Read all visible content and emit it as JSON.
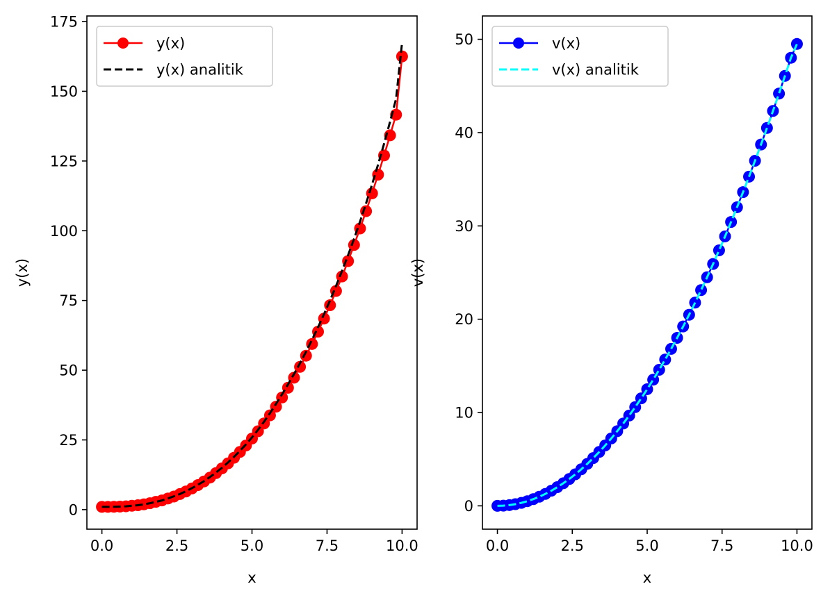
{
  "chart_data": [
    {
      "type": "line",
      "title": "",
      "xlabel": "x",
      "ylabel": "y(x)",
      "xlim": [
        -0.5,
        10.5
      ],
      "ylim": [
        -7,
        177
      ],
      "xticks": [
        "0.0",
        "2.5",
        "5.0",
        "7.5",
        "10.0"
      ],
      "yticks": [
        "0",
        "25",
        "50",
        "75",
        "100",
        "125",
        "150",
        "175"
      ],
      "grid": false,
      "legend_position": "upper-left",
      "x": [
        0,
        0.2,
        0.4,
        0.6,
        0.8,
        1.0,
        1.2,
        1.4,
        1.6,
        1.8,
        2.0,
        2.2,
        2.4,
        2.6,
        2.8,
        3.0,
        3.2,
        3.4,
        3.6,
        3.8,
        4.0,
        4.2,
        4.4,
        4.6,
        4.8,
        5.0,
        5.2,
        5.4,
        5.6,
        5.8,
        6.0,
        6.2,
        6.4,
        6.6,
        6.8,
        7.0,
        7.2,
        7.4,
        7.6,
        7.8,
        8.0,
        8.2,
        8.4,
        8.6,
        8.8,
        9.0,
        9.2,
        9.4,
        9.6,
        9.8,
        10.0
      ],
      "series": [
        {
          "name": "y(x)",
          "style": "line-marker",
          "color": "#ff0000",
          "values": [
            1.0,
            1.0,
            1.03,
            1.1,
            1.2,
            1.4,
            1.6,
            1.9,
            2.3,
            2.8,
            3.3,
            4.0,
            4.7,
            5.6,
            6.5,
            7.6,
            8.8,
            10.1,
            11.5,
            13.1,
            14.8,
            16.6,
            18.6,
            20.7,
            23.0,
            25.5,
            28.1,
            30.9,
            33.8,
            36.9,
            40.2,
            43.7,
            47.3,
            51.2,
            55.2,
            59.4,
            63.8,
            68.5,
            73.3,
            78.4,
            83.6,
            89.1,
            94.9,
            100.8,
            107.0,
            113.4,
            120.1,
            127.0,
            134.2,
            141.6,
            162.5
          ]
        },
        {
          "name": "y(x) analitik",
          "style": "dashed",
          "color": "#000000",
          "values": [
            1.0,
            1.0,
            1.03,
            1.1,
            1.2,
            1.4,
            1.6,
            1.9,
            2.3,
            2.8,
            3.3,
            4.0,
            4.8,
            5.6,
            6.6,
            7.7,
            8.9,
            10.2,
            11.7,
            13.3,
            15.0,
            16.9,
            18.9,
            21.1,
            23.4,
            25.9,
            28.6,
            31.5,
            34.6,
            37.9,
            41.3,
            44.9,
            48.6,
            52.5,
            56.6,
            60.9,
            65.4,
            70.1,
            75.0,
            80.2,
            85.6,
            91.2,
            97.1,
            103.3,
            109.8,
            116.6,
            123.7,
            131.2,
            139.1,
            147.3,
            167.5
          ]
        }
      ]
    },
    {
      "type": "line",
      "title": "",
      "xlabel": "x",
      "ylabel": "v(x)",
      "xlim": [
        -0.5,
        10.5
      ],
      "ylim": [
        -2.5,
        52.5
      ],
      "xticks": [
        "0.0",
        "2.5",
        "5.0",
        "7.5",
        "10.0"
      ],
      "yticks": [
        "0",
        "10",
        "20",
        "30",
        "40",
        "50"
      ],
      "grid": false,
      "legend_position": "upper-left",
      "x": [
        0,
        0.2,
        0.4,
        0.6,
        0.8,
        1.0,
        1.2,
        1.4,
        1.6,
        1.8,
        2.0,
        2.2,
        2.4,
        2.6,
        2.8,
        3.0,
        3.2,
        3.4,
        3.6,
        3.8,
        4.0,
        4.2,
        4.4,
        4.6,
        4.8,
        5.0,
        5.2,
        5.4,
        5.6,
        5.8,
        6.0,
        6.2,
        6.4,
        6.6,
        6.8,
        7.0,
        7.2,
        7.4,
        7.6,
        7.8,
        8.0,
        8.2,
        8.4,
        8.6,
        8.8,
        9.0,
        9.2,
        9.4,
        9.6,
        9.8,
        10.0
      ],
      "series": [
        {
          "name": "v(x)",
          "style": "line-marker",
          "color": "#0000ff",
          "values": [
            0.0,
            0.02,
            0.08,
            0.18,
            0.32,
            0.5,
            0.72,
            0.98,
            1.28,
            1.62,
            2.0,
            2.42,
            2.88,
            3.38,
            3.92,
            4.5,
            5.12,
            5.78,
            6.48,
            7.22,
            8.0,
            8.82,
            9.68,
            10.58,
            11.52,
            12.5,
            13.52,
            14.58,
            15.68,
            16.82,
            18.0,
            19.22,
            20.48,
            21.78,
            23.12,
            24.5,
            25.92,
            27.38,
            28.88,
            30.42,
            32.0,
            33.62,
            35.28,
            36.98,
            38.72,
            40.5,
            42.32,
            44.18,
            46.08,
            48.02,
            49.5
          ]
        },
        {
          "name": "v(x) analitik",
          "style": "dashed",
          "color": "#00ffff",
          "values": [
            0.0,
            0.02,
            0.08,
            0.18,
            0.32,
            0.5,
            0.72,
            0.98,
            1.28,
            1.62,
            2.0,
            2.42,
            2.88,
            3.38,
            3.92,
            4.5,
            5.12,
            5.78,
            6.48,
            7.22,
            8.0,
            8.82,
            9.68,
            10.58,
            11.52,
            12.5,
            13.52,
            14.58,
            15.68,
            16.82,
            18.0,
            19.22,
            20.48,
            21.78,
            23.12,
            24.5,
            25.92,
            27.38,
            28.88,
            30.42,
            32.0,
            33.62,
            35.28,
            36.98,
            38.72,
            40.5,
            42.32,
            44.18,
            46.08,
            48.02,
            49.5
          ]
        }
      ]
    }
  ]
}
